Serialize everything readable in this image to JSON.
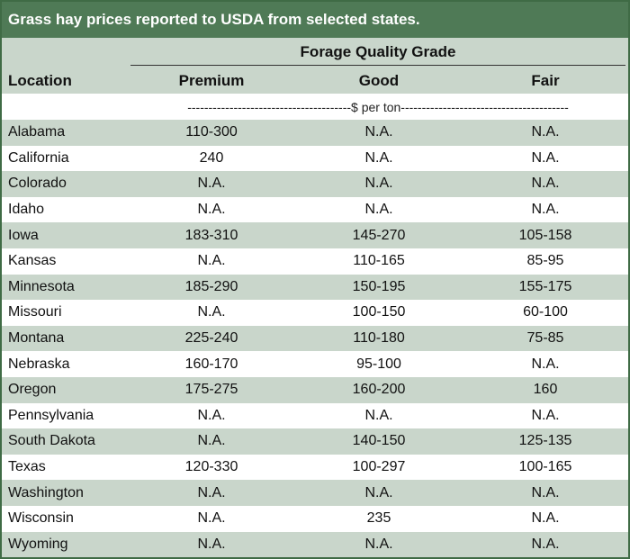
{
  "title": "Grass hay prices reported to USDA from selected states.",
  "header": {
    "group_label": "Forage Quality Grade",
    "location_label": "Location",
    "columns": [
      "Premium",
      "Good",
      "Fair"
    ],
    "unit_label": "---------------------------------------$ per ton----------------------------------------"
  },
  "rows": [
    {
      "location": "Alabama",
      "premium": "110-300",
      "good": "N.A.",
      "fair": "N.A."
    },
    {
      "location": "California",
      "premium": "240",
      "good": "N.A.",
      "fair": "N.A."
    },
    {
      "location": "Colorado",
      "premium": "N.A.",
      "good": "N.A.",
      "fair": "N.A."
    },
    {
      "location": "Idaho",
      "premium": "N.A.",
      "good": "N.A.",
      "fair": "N.A."
    },
    {
      "location": "Iowa",
      "premium": "183-310",
      "good": "145-270",
      "fair": "105-158"
    },
    {
      "location": "Kansas",
      "premium": "N.A.",
      "good": "110-165",
      "fair": "85-95"
    },
    {
      "location": "Minnesota",
      "premium": "185-290",
      "good": "150-195",
      "fair": "155-175"
    },
    {
      "location": "Missouri",
      "premium": "N.A.",
      "good": "100-150",
      "fair": "60-100"
    },
    {
      "location": "Montana",
      "premium": "225-240",
      "good": "110-180",
      "fair": "75-85"
    },
    {
      "location": "Nebraska",
      "premium": "160-170",
      "good": "95-100",
      "fair": "N.A."
    },
    {
      "location": "Oregon",
      "premium": "175-275",
      "good": "160-200",
      "fair": "160"
    },
    {
      "location": "Pennsylvania",
      "premium": "N.A.",
      "good": "N.A.",
      "fair": "N.A."
    },
    {
      "location": "South Dakota",
      "premium": "N.A.",
      "good": "140-150",
      "fair": "125-135"
    },
    {
      "location": "Texas",
      "premium": "120-330",
      "good": "100-297",
      "fair": "100-165"
    },
    {
      "location": "Washington",
      "premium": "N.A.",
      "good": "N.A.",
      "fair": "N.A."
    },
    {
      "location": "Wisconsin",
      "premium": "N.A.",
      "good": "235",
      "fair": "N.A."
    },
    {
      "location": "Wyoming",
      "premium": "N.A.",
      "good": "N.A.",
      "fair": "N.A."
    }
  ],
  "colors": {
    "title_bg": "#4f7a56",
    "band_bg": "#c9d6cb",
    "border": "#3f6b45"
  }
}
